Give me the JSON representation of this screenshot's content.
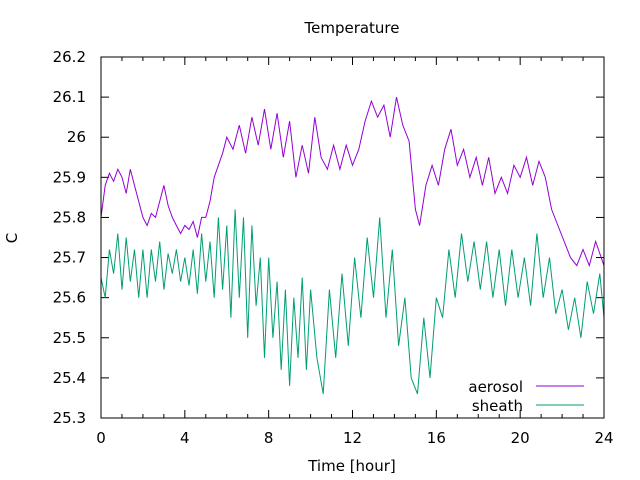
{
  "chart_data": {
    "type": "line",
    "title": "Temperature",
    "xlabel": "Time [hour]",
    "ylabel": "C",
    "xlim": [
      0,
      24
    ],
    "ylim": [
      25.3,
      26.2
    ],
    "x_ticks": [
      0,
      4,
      8,
      12,
      16,
      20,
      24
    ],
    "y_ticks": [
      25.3,
      25.4,
      25.5,
      25.6,
      25.7,
      25.8,
      25.9,
      26.0,
      26.1,
      26.2
    ],
    "x_tick_labels": [
      "0",
      "4",
      "8",
      "12",
      "16",
      "20",
      "24"
    ],
    "y_tick_labels": [
      "25.3",
      "25.4",
      "25.5",
      "25.6",
      "25.7",
      "25.8",
      "25.9",
      "26",
      "26.1",
      "26.2"
    ],
    "grid": false,
    "legend_position": "bottom-right",
    "series": [
      {
        "name": "aerosol",
        "color": "#9400d3",
        "points": [
          [
            0.0,
            25.8
          ],
          [
            0.2,
            25.88
          ],
          [
            0.4,
            25.91
          ],
          [
            0.6,
            25.89
          ],
          [
            0.8,
            25.92
          ],
          [
            1.0,
            25.9
          ],
          [
            1.2,
            25.86
          ],
          [
            1.4,
            25.92
          ],
          [
            1.6,
            25.88
          ],
          [
            1.8,
            25.84
          ],
          [
            2.0,
            25.8
          ],
          [
            2.2,
            25.78
          ],
          [
            2.4,
            25.81
          ],
          [
            2.6,
            25.8
          ],
          [
            2.8,
            25.84
          ],
          [
            3.0,
            25.88
          ],
          [
            3.2,
            25.83
          ],
          [
            3.4,
            25.8
          ],
          [
            3.6,
            25.78
          ],
          [
            3.8,
            25.76
          ],
          [
            4.0,
            25.78
          ],
          [
            4.2,
            25.77
          ],
          [
            4.4,
            25.79
          ],
          [
            4.6,
            25.75
          ],
          [
            4.8,
            25.8
          ],
          [
            5.0,
            25.8
          ],
          [
            5.2,
            25.84
          ],
          [
            5.4,
            25.9
          ],
          [
            5.6,
            25.93
          ],
          [
            5.8,
            25.96
          ],
          [
            6.0,
            26.0
          ],
          [
            6.3,
            25.97
          ],
          [
            6.6,
            26.03
          ],
          [
            6.9,
            25.96
          ],
          [
            7.2,
            26.05
          ],
          [
            7.5,
            25.98
          ],
          [
            7.8,
            26.07
          ],
          [
            8.1,
            25.97
          ],
          [
            8.4,
            26.06
          ],
          [
            8.7,
            25.95
          ],
          [
            9.0,
            26.04
          ],
          [
            9.3,
            25.9
          ],
          [
            9.6,
            25.98
          ],
          [
            9.9,
            25.91
          ],
          [
            10.2,
            26.05
          ],
          [
            10.5,
            25.95
          ],
          [
            10.8,
            25.92
          ],
          [
            11.1,
            25.98
          ],
          [
            11.4,
            25.92
          ],
          [
            11.7,
            25.98
          ],
          [
            12.0,
            25.93
          ],
          [
            12.3,
            25.97
          ],
          [
            12.6,
            26.04
          ],
          [
            12.9,
            26.09
          ],
          [
            13.2,
            26.05
          ],
          [
            13.5,
            26.08
          ],
          [
            13.8,
            26.0
          ],
          [
            14.1,
            26.1
          ],
          [
            14.4,
            26.03
          ],
          [
            14.7,
            25.99
          ],
          [
            15.0,
            25.82
          ],
          [
            15.2,
            25.78
          ],
          [
            15.5,
            25.88
          ],
          [
            15.8,
            25.93
          ],
          [
            16.1,
            25.88
          ],
          [
            16.4,
            25.97
          ],
          [
            16.7,
            26.02
          ],
          [
            17.0,
            25.93
          ],
          [
            17.3,
            25.97
          ],
          [
            17.6,
            25.9
          ],
          [
            17.9,
            25.95
          ],
          [
            18.2,
            25.88
          ],
          [
            18.5,
            25.95
          ],
          [
            18.8,
            25.86
          ],
          [
            19.1,
            25.9
          ],
          [
            19.4,
            25.86
          ],
          [
            19.7,
            25.93
          ],
          [
            20.0,
            25.9
          ],
          [
            20.3,
            25.95
          ],
          [
            20.6,
            25.88
          ],
          [
            20.9,
            25.94
          ],
          [
            21.2,
            25.9
          ],
          [
            21.5,
            25.82
          ],
          [
            21.8,
            25.78
          ],
          [
            22.1,
            25.74
          ],
          [
            22.4,
            25.7
          ],
          [
            22.7,
            25.68
          ],
          [
            23.0,
            25.72
          ],
          [
            23.3,
            25.68
          ],
          [
            23.6,
            25.74
          ],
          [
            24.0,
            25.68
          ]
        ]
      },
      {
        "name": "sheath",
        "color": "#009e73",
        "points": [
          [
            0.0,
            25.65
          ],
          [
            0.2,
            25.6
          ],
          [
            0.4,
            25.72
          ],
          [
            0.6,
            25.66
          ],
          [
            0.8,
            25.76
          ],
          [
            1.0,
            25.62
          ],
          [
            1.2,
            25.75
          ],
          [
            1.4,
            25.64
          ],
          [
            1.6,
            25.72
          ],
          [
            1.8,
            25.6
          ],
          [
            2.0,
            25.72
          ],
          [
            2.2,
            25.6
          ],
          [
            2.4,
            25.72
          ],
          [
            2.6,
            25.64
          ],
          [
            2.8,
            25.74
          ],
          [
            3.0,
            25.62
          ],
          [
            3.2,
            25.71
          ],
          [
            3.4,
            25.66
          ],
          [
            3.6,
            25.72
          ],
          [
            3.8,
            25.64
          ],
          [
            4.0,
            25.7
          ],
          [
            4.2,
            25.63
          ],
          [
            4.4,
            25.72
          ],
          [
            4.6,
            25.61
          ],
          [
            4.8,
            25.76
          ],
          [
            5.0,
            25.64
          ],
          [
            5.2,
            25.74
          ],
          [
            5.4,
            25.6
          ],
          [
            5.6,
            25.8
          ],
          [
            5.8,
            25.62
          ],
          [
            6.0,
            25.78
          ],
          [
            6.2,
            25.55
          ],
          [
            6.4,
            25.82
          ],
          [
            6.6,
            25.6
          ],
          [
            6.8,
            25.8
          ],
          [
            7.0,
            25.5
          ],
          [
            7.2,
            25.78
          ],
          [
            7.4,
            25.58
          ],
          [
            7.6,
            25.7
          ],
          [
            7.8,
            25.45
          ],
          [
            8.0,
            25.7
          ],
          [
            8.2,
            25.5
          ],
          [
            8.4,
            25.64
          ],
          [
            8.6,
            25.42
          ],
          [
            8.8,
            25.62
          ],
          [
            9.0,
            25.38
          ],
          [
            9.2,
            25.6
          ],
          [
            9.4,
            25.45
          ],
          [
            9.6,
            25.65
          ],
          [
            9.8,
            25.42
          ],
          [
            10.0,
            25.62
          ],
          [
            10.3,
            25.45
          ],
          [
            10.6,
            25.36
          ],
          [
            10.9,
            25.62
          ],
          [
            11.2,
            25.45
          ],
          [
            11.5,
            25.66
          ],
          [
            11.8,
            25.48
          ],
          [
            12.1,
            25.7
          ],
          [
            12.4,
            25.55
          ],
          [
            12.7,
            25.75
          ],
          [
            13.0,
            25.6
          ],
          [
            13.3,
            25.8
          ],
          [
            13.6,
            25.55
          ],
          [
            13.9,
            25.72
          ],
          [
            14.2,
            25.48
          ],
          [
            14.5,
            25.6
          ],
          [
            14.8,
            25.4
          ],
          [
            15.1,
            25.36
          ],
          [
            15.4,
            25.55
          ],
          [
            15.7,
            25.4
          ],
          [
            16.0,
            25.6
          ],
          [
            16.3,
            25.55
          ],
          [
            16.6,
            25.72
          ],
          [
            16.9,
            25.6
          ],
          [
            17.2,
            25.76
          ],
          [
            17.5,
            25.64
          ],
          [
            17.8,
            25.74
          ],
          [
            18.1,
            25.62
          ],
          [
            18.4,
            25.74
          ],
          [
            18.7,
            25.6
          ],
          [
            19.0,
            25.72
          ],
          [
            19.3,
            25.58
          ],
          [
            19.6,
            25.72
          ],
          [
            19.9,
            25.6
          ],
          [
            20.2,
            25.7
          ],
          [
            20.5,
            25.58
          ],
          [
            20.8,
            25.76
          ],
          [
            21.1,
            25.6
          ],
          [
            21.4,
            25.7
          ],
          [
            21.7,
            25.56
          ],
          [
            22.0,
            25.62
          ],
          [
            22.3,
            25.52
          ],
          [
            22.6,
            25.6
          ],
          [
            22.9,
            25.5
          ],
          [
            23.2,
            25.64
          ],
          [
            23.5,
            25.56
          ],
          [
            23.8,
            25.66
          ],
          [
            24.0,
            25.55
          ]
        ]
      }
    ]
  }
}
